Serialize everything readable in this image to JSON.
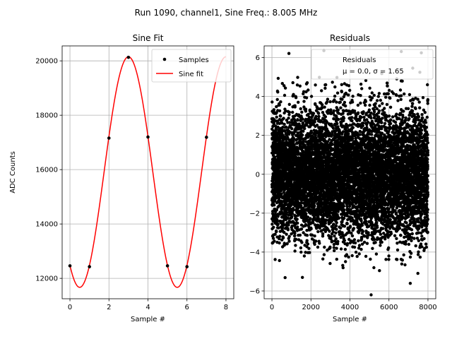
{
  "figure": {
    "suptitle": "Run 1090, channel1, Sine Freq.: 8.005 MHz"
  },
  "chart_data": [
    {
      "type": "line",
      "title": "Sine Fit",
      "xlabel": "Sample #",
      "ylabel": "ADC Counts",
      "xlim": [
        -0.4,
        8.4
      ],
      "ylim": [
        11250,
        20550
      ],
      "xticks": [
        0,
        2,
        4,
        6,
        8
      ],
      "xtick_labels": [
        "0",
        "2",
        "4",
        "6",
        "8"
      ],
      "yticks": [
        12000,
        14000,
        16000,
        18000,
        20000
      ],
      "ytick_labels": [
        "12000",
        "14000",
        "16000",
        "18000",
        "20000"
      ],
      "grid": true,
      "legend": "top-right",
      "series": [
        {
          "name": "Samples",
          "kind": "scatter",
          "color": "#000000",
          "x": [
            0,
            1,
            2,
            3,
            4,
            5,
            6,
            7
          ],
          "y": [
            12460,
            12430,
            17160,
            20130,
            17200,
            12460,
            12430,
            17190
          ]
        },
        {
          "name": "Sine fit",
          "kind": "line",
          "color": "#ff0000",
          "model": {
            "mean": 15910,
            "amplitude": 4240,
            "period": 5.0,
            "peak_x": 3.0
          },
          "x_range": [
            0,
            8
          ]
        }
      ]
    },
    {
      "type": "scatter",
      "title": "Residuals",
      "xlabel": "Sample #",
      "ylabel": "",
      "xlim": [
        -400,
        8400
      ],
      "ylim": [
        -6.4,
        6.6
      ],
      "xticks": [
        0,
        2000,
        4000,
        6000,
        8000
      ],
      "xtick_labels": [
        "0",
        "2000",
        "4000",
        "6000",
        "8000"
      ],
      "yticks": [
        -6,
        -4,
        -2,
        0,
        2,
        4,
        6
      ],
      "ytick_labels": [
        "−6",
        "−4",
        "−2",
        "0",
        "2",
        "4",
        "6"
      ],
      "grid": true,
      "legend": "top-right",
      "series": [
        {
          "name": "Residuals",
          "legend_line2": "μ = 0.0, σ = 1.65",
          "color": "#000000",
          "mean": 0.0,
          "sigma": 1.65,
          "x_range": [
            0,
            8000
          ],
          "count": 8000
        }
      ]
    }
  ]
}
